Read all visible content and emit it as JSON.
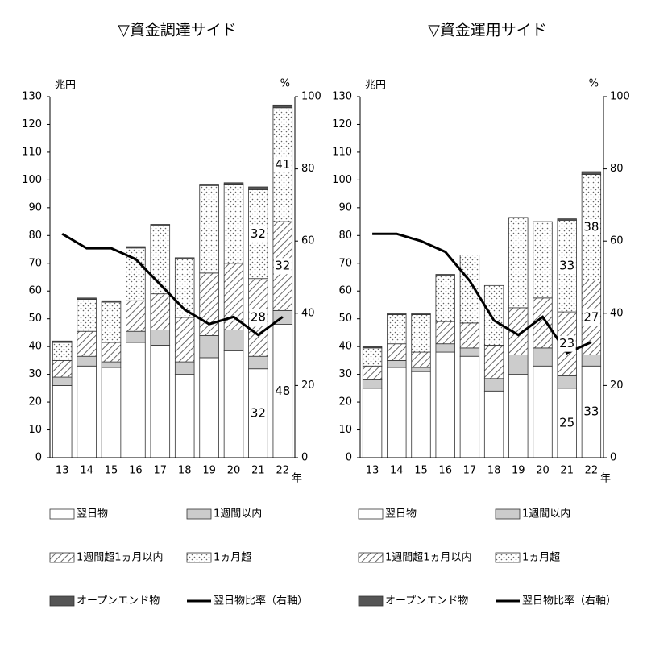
{
  "chart_data": [
    {
      "type": "bar",
      "stacked": true,
      "title": "▽資金調達サイド",
      "y_label": "兆円",
      "y2_label": "%",
      "x_label": "年",
      "categories": [
        "13",
        "14",
        "15",
        "16",
        "17",
        "18",
        "19",
        "20",
        "21",
        "22"
      ],
      "ylim": [
        0,
        130
      ],
      "yticks": [
        0,
        10,
        20,
        30,
        40,
        50,
        60,
        70,
        80,
        90,
        100,
        110,
        120,
        130
      ],
      "y2lim": [
        0,
        100
      ],
      "y2ticks": [
        0,
        20,
        40,
        60,
        80,
        100
      ],
      "series": [
        {
          "name": "翌日物",
          "color": "#ffffff",
          "fill": "solid",
          "values": [
            26,
            33,
            32.5,
            41.5,
            40.5,
            30,
            36,
            38.5,
            32,
            48
          ],
          "value_labels": [
            null,
            null,
            null,
            null,
            null,
            null,
            null,
            null,
            "32",
            "48"
          ]
        },
        {
          "name": "1週間以内",
          "color": "#cccccc",
          "fill": "solid",
          "values": [
            3,
            3.5,
            2,
            4,
            5.5,
            4.5,
            8,
            7.5,
            4.5,
            5
          ]
        },
        {
          "name": "1週間超1ヵ月以内",
          "color": "#666666",
          "fill": "hatch",
          "values": [
            6,
            9,
            7,
            11,
            13,
            16,
            22.5,
            24,
            28,
            32
          ],
          "value_labels": [
            null,
            null,
            null,
            null,
            null,
            null,
            null,
            null,
            "28",
            "32"
          ]
        },
        {
          "name": "1ヵ月超",
          "color": "#666666",
          "fill": "dots",
          "values": [
            6.5,
            11.5,
            14.5,
            19,
            24.5,
            21,
            31.5,
            28.5,
            32,
            41
          ],
          "value_labels": [
            null,
            null,
            null,
            null,
            null,
            null,
            null,
            null,
            "32",
            "41"
          ]
        },
        {
          "name": "オープンエンド物",
          "color": "#555555",
          "fill": "solid",
          "values": [
            0.5,
            0.5,
            0.5,
            0.5,
            0.5,
            0.5,
            0.5,
            0.5,
            1,
            1
          ]
        },
        {
          "name": "翌日物比率（右軸）",
          "type": "line",
          "axis": "y2",
          "color": "#000000",
          "values": [
            62,
            58,
            58,
            55,
            48,
            41,
            37,
            39,
            34,
            39
          ]
        }
      ]
    },
    {
      "type": "bar",
      "stacked": true,
      "title": "▽資金運用サイド",
      "y_label": "兆円",
      "y2_label": "%",
      "x_label": "年",
      "categories": [
        "13",
        "14",
        "15",
        "16",
        "17",
        "18",
        "19",
        "20",
        "21",
        "22"
      ],
      "ylim": [
        0,
        130
      ],
      "yticks": [
        0,
        10,
        20,
        30,
        40,
        50,
        60,
        70,
        80,
        90,
        100,
        110,
        120,
        130
      ],
      "y2lim": [
        0,
        100
      ],
      "y2ticks": [
        0,
        20,
        40,
        60,
        80,
        100
      ],
      "series": [
        {
          "name": "翌日物",
          "color": "#ffffff",
          "fill": "solid",
          "values": [
            25,
            32.5,
            31,
            38,
            36.5,
            24,
            30,
            33,
            25,
            33
          ],
          "value_labels": [
            null,
            null,
            null,
            null,
            null,
            null,
            null,
            null,
            "25",
            "33"
          ]
        },
        {
          "name": "1週間以内",
          "color": "#cccccc",
          "fill": "solid",
          "values": [
            3,
            2.5,
            1.5,
            3,
            3,
            4.5,
            7,
            6.5,
            4.5,
            4
          ]
        },
        {
          "name": "1週間超1ヵ月以内",
          "color": "#666666",
          "fill": "hatch",
          "values": [
            5,
            6,
            5.5,
            8,
            9,
            12,
            17,
            18,
            23,
            27
          ],
          "value_labels": [
            null,
            null,
            null,
            null,
            null,
            null,
            null,
            null,
            "23",
            "27"
          ]
        },
        {
          "name": "1ヵ月超",
          "color": "#666666",
          "fill": "dots",
          "values": [
            6.5,
            10.5,
            13.5,
            16.5,
            24.5,
            21.5,
            32.5,
            27.5,
            33,
            38
          ],
          "value_labels": [
            null,
            null,
            null,
            null,
            null,
            null,
            null,
            null,
            "33",
            "38"
          ]
        },
        {
          "name": "オープンエンド物",
          "color": "#555555",
          "fill": "solid",
          "values": [
            0.5,
            0.5,
            0.5,
            0.5,
            0,
            0,
            0,
            0,
            0.5,
            1
          ]
        },
        {
          "name": "翌日物比率（右軸）",
          "type": "line",
          "axis": "y2",
          "color": "#000000",
          "values": [
            62,
            62,
            60,
            57,
            49,
            38,
            34,
            39,
            29,
            32
          ]
        }
      ]
    }
  ]
}
